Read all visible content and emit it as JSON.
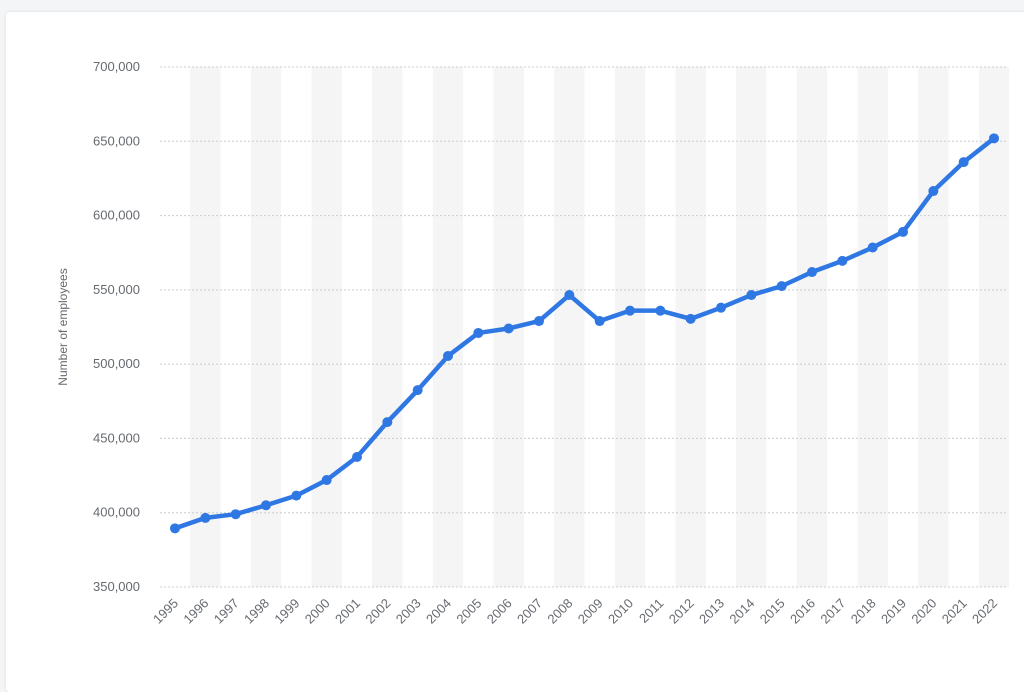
{
  "chart_data": {
    "type": "line",
    "title": "",
    "xlabel": "",
    "ylabel": "Number of employees",
    "ylim": [
      350000,
      700000
    ],
    "yticks": [
      350000,
      400000,
      450000,
      500000,
      550000,
      600000,
      650000,
      700000
    ],
    "ytick_labels": [
      "350,000",
      "400,000",
      "450,000",
      "500,000",
      "550,000",
      "600,000",
      "650,000",
      "700,000"
    ],
    "grid": "horizontal dotted, alternating column shading",
    "categories": [
      "1995",
      "1996",
      "1997",
      "1998",
      "1999",
      "2000",
      "2001",
      "2002",
      "2003",
      "2004",
      "2005",
      "2006",
      "2007",
      "2008",
      "2009",
      "2010",
      "2011",
      "2012",
      "2013",
      "2014",
      "2015",
      "2016",
      "2017",
      "2018",
      "2019",
      "2020",
      "2021",
      "2022"
    ],
    "series": [
      {
        "values": [
          389500,
          396500,
          399000,
          405000,
          411500,
          422000,
          437500,
          461000,
          482500,
          505500,
          521000,
          524000,
          529000,
          546500,
          529000,
          536000,
          536000,
          530500,
          538000,
          546500,
          552500,
          562000,
          569500,
          578500,
          589000,
          616500,
          636000,
          652000
        ],
        "color": "#2f78e3"
      }
    ]
  }
}
